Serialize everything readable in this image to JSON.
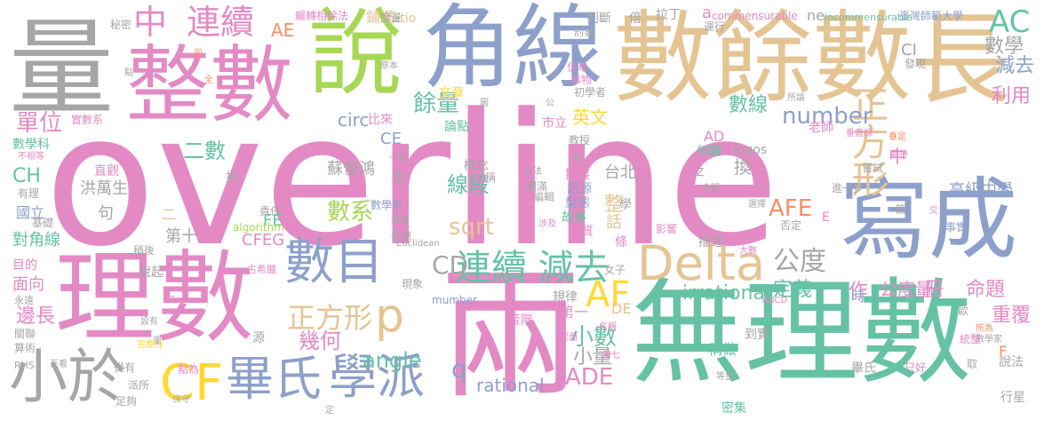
{
  "colors": {
    "pink": "#e38ac5",
    "gray": "#a6a6a6",
    "blue": "#8da0cb",
    "green": "#66c2a5",
    "lime": "#a6d854",
    "tan": "#e5c494",
    "yellow": "#ffd92f",
    "orange": "#fc8d62"
  },
  "words": [
    {
      "text": "overline",
      "color": "pink"
    },
    {
      "text": "理數",
      "color": "pink"
    },
    {
      "text": "兩",
      "color": "pink"
    },
    {
      "text": "無理數",
      "color": "green"
    },
    {
      "text": "整數",
      "color": "pink"
    },
    {
      "text": "量",
      "color": "gray"
    },
    {
      "text": "說",
      "color": "lime"
    },
    {
      "text": "角線",
      "color": "blue"
    },
    {
      "text": "數餘數",
      "color": "tan"
    },
    {
      "text": "長",
      "color": "tan"
    },
    {
      "text": "寫成",
      "color": "blue"
    },
    {
      "text": "正方形",
      "color": "tan"
    },
    {
      "text": "數目",
      "color": "blue"
    },
    {
      "text": "Delta",
      "color": "tan"
    },
    {
      "text": "小於",
      "color": "gray"
    },
    {
      "text": "CF",
      "color": "yellow"
    },
    {
      "text": "畢氏",
      "color": "blue"
    },
    {
      "text": "學派",
      "color": "blue"
    },
    {
      "text": "連續 減去",
      "color": "green"
    },
    {
      "text": "正方形",
      "color": "tan"
    },
    {
      "text": "p",
      "color": "tan"
    },
    {
      "text": "AF",
      "color": "yellow"
    },
    {
      "text": "中",
      "color": "pink"
    },
    {
      "text": "連續",
      "color": "pink"
    },
    {
      "text": "AC",
      "color": "green"
    },
    {
      "text": "number",
      "color": "blue"
    },
    {
      "text": "AFE",
      "color": "orange"
    },
    {
      "text": "sqrt",
      "color": "tan"
    },
    {
      "text": "angle",
      "color": "green"
    },
    {
      "text": "ADE",
      "color": "pink"
    },
    {
      "text": "公度",
      "color": "gray"
    },
    {
      "text": "小數",
      "color": "green"
    },
    {
      "text": "幾何",
      "color": "pink"
    },
    {
      "text": "CD",
      "color": "gray"
    },
    {
      "text": "餘量",
      "color": "green"
    },
    {
      "text": "數系",
      "color": "lime"
    },
    {
      "text": "線段",
      "color": "green"
    },
    {
      "text": "irrational",
      "color": "green"
    },
    {
      "text": "rational",
      "color": "blue"
    },
    {
      "text": "q",
      "color": "blue"
    },
    {
      "text": "小量",
      "color": "gray"
    },
    {
      "text": "單位",
      "color": "pink"
    },
    {
      "text": "二數",
      "color": "green"
    },
    {
      "text": "AE",
      "color": "orange"
    },
    {
      "text": "數學",
      "color": "gray"
    },
    {
      "text": "減去",
      "color": "blue"
    },
    {
      "text": "利用",
      "color": "pink"
    },
    {
      "text": "定義",
      "color": "green"
    },
    {
      "text": "命題",
      "color": "pink"
    },
    {
      "text": "公度量",
      "color": "pink"
    },
    {
      "text": "重覆",
      "color": "pink"
    },
    {
      "text": "數線",
      "color": "green"
    },
    {
      "text": "英文",
      "color": "yellow"
    },
    {
      "text": "circ",
      "color": "blue"
    },
    {
      "text": "CE",
      "color": "blue"
    },
    {
      "text": "蘇俊鴻",
      "color": "gray"
    },
    {
      "text": "洪萬生",
      "color": "gray"
    },
    {
      "text": "台北",
      "color": "gray"
    },
    {
      "text": "換",
      "color": "gray"
    },
    {
      "text": "中",
      "color": "pink"
    },
    {
      "text": "高級中學",
      "color": "blue"
    },
    {
      "text": "臺灣師範大學",
      "color": "blue"
    },
    {
      "text": "CI",
      "color": "gray"
    },
    {
      "text": "commensurable",
      "color": "pink"
    },
    {
      "text": "a",
      "color": "pink"
    },
    {
      "text": "incommensurable",
      "color": "green"
    },
    {
      "text": "ne",
      "color": "gray"
    },
    {
      "text": "CH",
      "color": "green"
    },
    {
      "text": "對角線",
      "color": "green"
    },
    {
      "text": "國立",
      "color": "blue"
    },
    {
      "text": "數學科",
      "color": "green"
    },
    {
      "text": "邊長",
      "color": "pink"
    },
    {
      "text": "面向",
      "color": "pink"
    },
    {
      "text": "目的",
      "color": "pink"
    },
    {
      "text": "第十",
      "color": "gray"
    },
    {
      "text": "CFEG",
      "color": "pink"
    },
    {
      "text": "FE",
      "color": "green"
    },
    {
      "text": "作",
      "color": "pink"
    },
    {
      "text": "時",
      "color": "blue"
    },
    {
      "text": "冊",
      "color": "pink"
    },
    {
      "text": "AD",
      "color": "pink"
    },
    {
      "text": "logos",
      "color": "gray"
    },
    {
      "text": "整",
      "color": "tan"
    },
    {
      "text": "句",
      "color": "gray"
    },
    {
      "text": "二",
      "color": "tan"
    },
    {
      "text": "說起",
      "color": "gray"
    },
    {
      "text": "DE",
      "color": "tan"
    },
    {
      "text": "第一",
      "color": "pink"
    },
    {
      "text": "規律",
      "color": "gray"
    },
    {
      "text": "音階",
      "color": "pink"
    },
    {
      "text": "稱做",
      "color": "green"
    },
    {
      "text": "到實",
      "color": "gray"
    },
    {
      "text": "畢氏",
      "color": "gray"
    },
    {
      "text": "說法",
      "color": "gray"
    },
    {
      "text": "行星",
      "color": "gray"
    },
    {
      "text": "密集",
      "color": "green"
    },
    {
      "text": "F",
      "color": "orange"
    },
    {
      "text": "E",
      "color": "pink"
    },
    {
      "text": "學",
      "color": "gray"
    },
    {
      "text": "話",
      "color": "tan"
    },
    {
      "text": "條",
      "color": "pink"
    },
    {
      "text": "ratio",
      "color": "tan"
    },
    {
      "text": "Euclidean",
      "color": "gray"
    },
    {
      "text": "mumber",
      "color": "blue"
    },
    {
      "text": "algorithm",
      "color": "lime"
    },
    {
      "text": "鋪滿",
      "color": "tan"
    },
    {
      "text": "輾轉相除法",
      "color": "pink"
    },
    {
      "text": "秘密",
      "color": "gray"
    },
    {
      "text": "實數系",
      "color": "pink"
    },
    {
      "text": "比來",
      "color": "pink"
    },
    {
      "text": "文章",
      "color": "yellow"
    },
    {
      "text": "論點",
      "color": "green"
    },
    {
      "text": "市立",
      "color": "pink"
    },
    {
      "text": "教授",
      "color": "gray"
    },
    {
      "text": "老師",
      "color": "pink"
    },
    {
      "text": "何謂",
      "color": "green"
    },
    {
      "text": "嘗試",
      "color": "gray"
    },
    {
      "text": "直觀",
      "color": "pink"
    },
    {
      "text": "指",
      "color": "gray"
    },
    {
      "text": "有理",
      "color": "gray"
    },
    {
      "text": "基礎",
      "color": "gray"
    },
    {
      "text": "故事",
      "color": "green"
    },
    {
      "text": "型態",
      "color": "blue"
    },
    {
      "text": "本質",
      "color": "pink"
    },
    {
      "text": "語源",
      "color": "blue"
    },
    {
      "text": "擴展",
      "color": "pink"
    },
    {
      "text": "編輯",
      "color": "gray"
    },
    {
      "text": "概念",
      "color": "gray"
    },
    {
      "text": "數學系",
      "color": "blue"
    },
    {
      "text": "責任",
      "color": "gray"
    },
    {
      "text": "描述",
      "color": "gray"
    },
    {
      "text": "否定",
      "color": "gray"
    },
    {
      "text": "進一步",
      "color": "gray"
    },
    {
      "text": "事實",
      "color": "blue"
    },
    {
      "text": "影響",
      "color": "pink"
    },
    {
      "text": "選擇",
      "color": "gray"
    },
    {
      "text": "大數",
      "color": "pink"
    },
    {
      "text": "判斷",
      "color": "gray"
    },
    {
      "text": "拉丁",
      "color": "gray"
    },
    {
      "text": "運行",
      "color": "gray"
    },
    {
      "text": "討論",
      "color": "gray"
    },
    {
      "text": "信奉",
      "color": "pink"
    },
    {
      "text": "事物",
      "color": "pink"
    },
    {
      "text": "初學者",
      "color": "gray"
    },
    {
      "text": "發現",
      "color": "gray"
    },
    {
      "text": "度量",
      "color": "gray"
    },
    {
      "text": "原本",
      "color": "gray"
    },
    {
      "text": "倍",
      "color": "gray"
    },
    {
      "text": "篇",
      "color": "gray"
    },
    {
      "text": "前",
      "color": "orange"
    },
    {
      "text": "點",
      "color": "gray"
    },
    {
      "text": "全",
      "color": "orange"
    },
    {
      "text": "公",
      "color": "gray"
    },
    {
      "text": "圖",
      "color": "gray"
    },
    {
      "text": "古希臘",
      "color": "pink"
    },
    {
      "text": "女子",
      "color": "gray"
    },
    {
      "text": "現象",
      "color": "gray"
    },
    {
      "text": "永遠",
      "color": "gray"
    },
    {
      "text": "算術",
      "color": "gray"
    },
    {
      "text": "關聯",
      "color": "gray"
    },
    {
      "text": "設有",
      "color": "gray"
    },
    {
      "text": "源",
      "color": "gray"
    },
    {
      "text": "從有",
      "color": "gray"
    },
    {
      "text": "足夠",
      "color": "gray"
    },
    {
      "text": "保守",
      "color": "gray"
    },
    {
      "text": "派所",
      "color": "gray"
    },
    {
      "text": "點為",
      "color": "pink"
    },
    {
      "text": "完整性",
      "color": "yellow"
    },
    {
      "text": "RHS",
      "color": "gray"
    },
    {
      "text": "互看",
      "color": "gray"
    },
    {
      "text": "稍後",
      "color": "gray"
    },
    {
      "text": "不相等",
      "color": "pink"
    },
    {
      "text": "ABCD",
      "color": "pink"
    },
    {
      "text": "等量",
      "color": "gray"
    },
    {
      "text": "只好",
      "color": "pink"
    },
    {
      "text": "取",
      "color": "gray"
    },
    {
      "text": "數學家",
      "color": "gray"
    },
    {
      "text": "所為",
      "color": "orange"
    },
    {
      "text": "統整",
      "color": "pink"
    },
    {
      "text": "歐",
      "color": "gray"
    },
    {
      "text": "垂直線",
      "color": "pink"
    },
    {
      "text": "垂足",
      "color": "orange"
    },
    {
      "text": "所論",
      "color": "gray"
    },
    {
      "text": "看待",
      "color": "pink"
    },
    {
      "text": "命題",
      "color": "gray"
    },
    {
      "text": "均",
      "color": "gray"
    },
    {
      "text": "方法",
      "color": "gray"
    },
    {
      "text": "圖滿",
      "color": "gray"
    },
    {
      "text": "涉及",
      "color": "pink"
    },
    {
      "text": "理論",
      "color": "gray"
    },
    {
      "text": "任意",
      "color": "gray"
    },
    {
      "text": "一點",
      "color": "gray"
    },
    {
      "text": "常",
      "color": "gray"
    },
    {
      "text": "名稱",
      "color": "pink"
    },
    {
      "text": "第七",
      "color": "pink"
    },
    {
      "text": "里",
      "color": "gray"
    },
    {
      "text": "正",
      "color": "pink"
    },
    {
      "text": "稱",
      "color": "gray"
    },
    {
      "text": "里面",
      "color": "pink"
    },
    {
      "text": "交",
      "color": "pink"
    },
    {
      "text": "定",
      "color": "gray"
    },
    {
      "text": "Z",
      "color": "gray"
    }
  ]
}
